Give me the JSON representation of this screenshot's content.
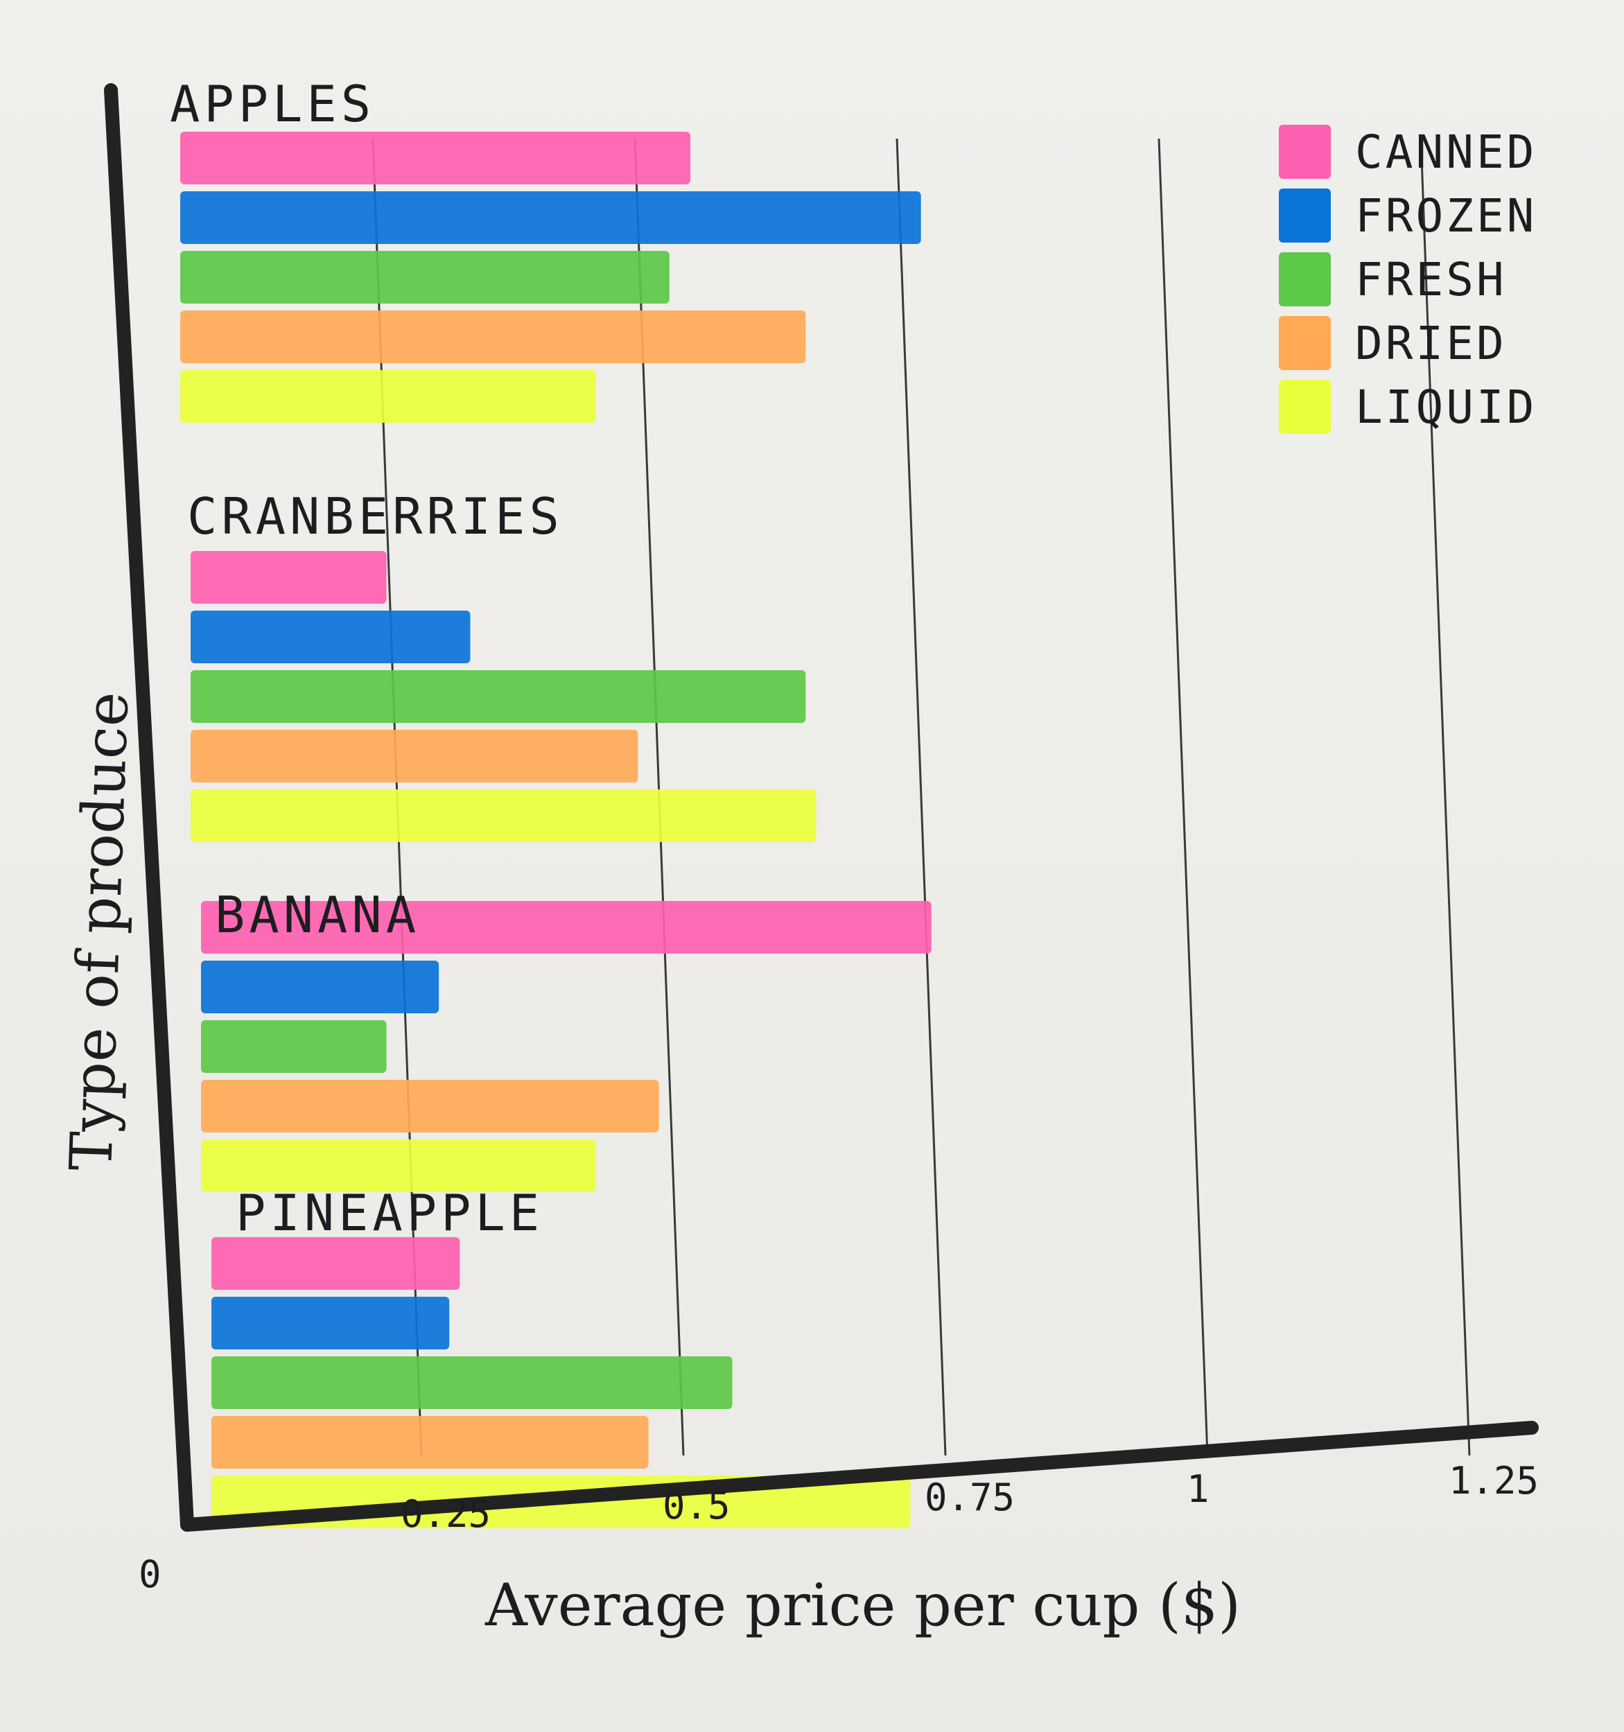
{
  "chart_data": {
    "type": "bar",
    "orientation": "horizontal",
    "title": "",
    "xlabel": "Average price per cup ($)",
    "ylabel": "Type of produce",
    "xlim": [
      0,
      1.25
    ],
    "xticks": [
      0,
      0.25,
      0.5,
      0.75,
      1,
      1.25
    ],
    "xtick_labels": [
      "0",
      "0.25",
      "0.5",
      "0.75",
      "1",
      "1.25"
    ],
    "grid": "vertical lines at ticks",
    "legend_position": "top-right",
    "categories": [
      "APPLES",
      "CRANBERRIES",
      "BANANA",
      "PINEAPPLE"
    ],
    "series": [
      {
        "name": "CANNED",
        "color": "#ff5fb0",
        "values": [
          0.5,
          0.21,
          0.73,
          0.28
        ]
      },
      {
        "name": "FROZEN",
        "color": "#0a74d8",
        "values": [
          0.72,
          0.29,
          0.26,
          0.27
        ]
      },
      {
        "name": "FRESH",
        "color": "#5cc847",
        "values": [
          0.48,
          0.61,
          0.21,
          0.54
        ]
      },
      {
        "name": "DRIED",
        "color": "#ffa955",
        "values": [
          0.61,
          0.45,
          0.47,
          0.46
        ]
      },
      {
        "name": "LIQUID",
        "color": "#eaff3c",
        "values": [
          0.41,
          0.62,
          0.41,
          0.71
        ]
      }
    ]
  }
}
